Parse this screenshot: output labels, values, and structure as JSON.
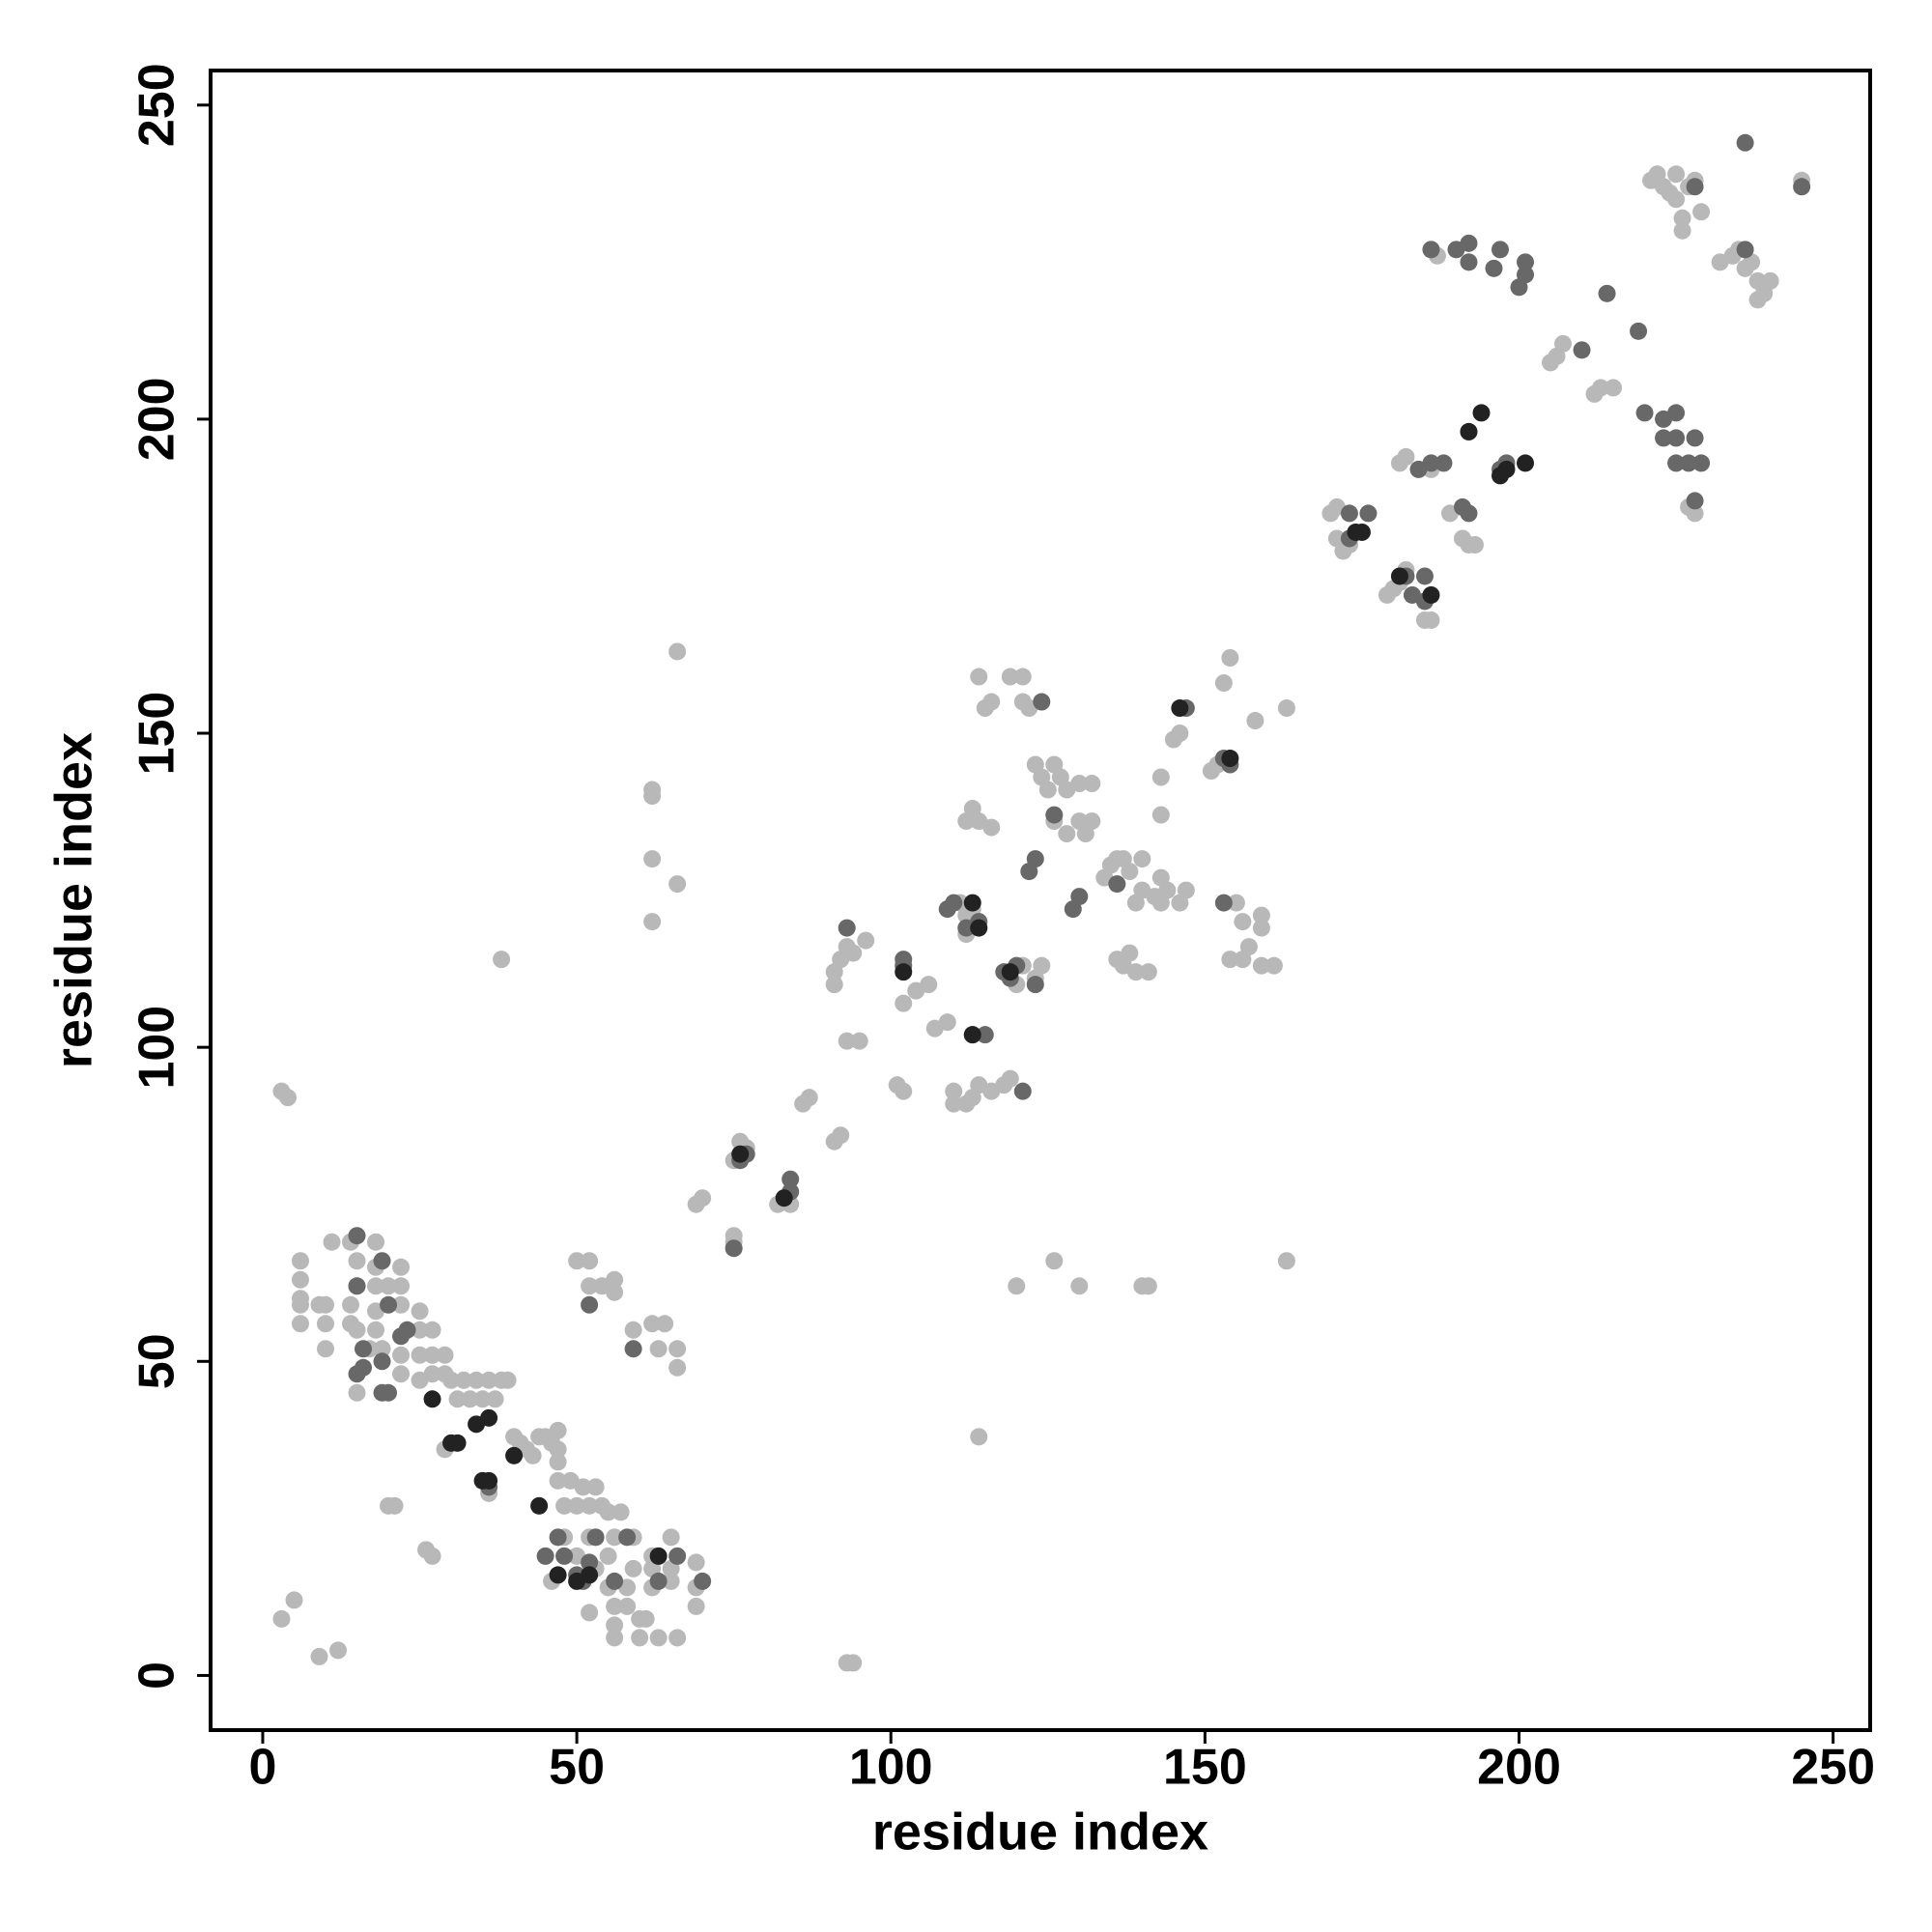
{
  "chart_data": {
    "type": "scatter",
    "x_label": "residue index",
    "y_label": "residue index",
    "xlim": [
      -8.3,
      255.9
    ],
    "ylim": [
      -8.7,
      255.5
    ],
    "xticks": [
      0,
      50,
      100,
      150,
      200,
      250
    ],
    "yticks": [
      0,
      50,
      100,
      150,
      200,
      250
    ],
    "grid": false,
    "series": [
      {
        "color": "#b8b8b8",
        "x": [
          3,
          4,
          3,
          5,
          9,
          12,
          6,
          6,
          6,
          6,
          6,
          9,
          10,
          10,
          11,
          10,
          14,
          14,
          14,
          15,
          15,
          15,
          15,
          17,
          18,
          18,
          18,
          18,
          18,
          19,
          20,
          22,
          22,
          22,
          22,
          22,
          25,
          25,
          25,
          25,
          27,
          27,
          27,
          29,
          29,
          30,
          31,
          32,
          33,
          34,
          35,
          36,
          37,
          38,
          39,
          40,
          41,
          42,
          43,
          44,
          45,
          46,
          47,
          47,
          47,
          47,
          48,
          49,
          50,
          51,
          52,
          53,
          54,
          55,
          56,
          57,
          59,
          48,
          50,
          52,
          53,
          55,
          55,
          56,
          56,
          56,
          58,
          58,
          59,
          60,
          60,
          61,
          62,
          62,
          62,
          63,
          65,
          65,
          65,
          66,
          69,
          69,
          69,
          46,
          52,
          20,
          21,
          26,
          27,
          50,
          52,
          52,
          54,
          56,
          56,
          59,
          62,
          63,
          66,
          66,
          64,
          29,
          36,
          38,
          66,
          62,
          62,
          62,
          62,
          66,
          93,
          94,
          114,
          120,
          126,
          130,
          140,
          141,
          163,
          69,
          70,
          75,
          75,
          75,
          76,
          77,
          77,
          82,
          83,
          84,
          84,
          86,
          87,
          91,
          92,
          91,
          91,
          92,
          93,
          94,
          93,
          95,
          96,
          101,
          102,
          102,
          104,
          106,
          107,
          109,
          110,
          110,
          112,
          113,
          114,
          116,
          118,
          119,
          112,
          112,
          113,
          111,
          112,
          113,
          114,
          116,
          114,
          115,
          116,
          119,
          121,
          121,
          122,
          123,
          124,
          125,
          126,
          127,
          128,
          126,
          128,
          130,
          131,
          132,
          130,
          132,
          120,
          121,
          123,
          124,
          134,
          135,
          136,
          137,
          138,
          139,
          140,
          142,
          143,
          144,
          146,
          147,
          136,
          137,
          138,
          139,
          141,
          143,
          140,
          143,
          143,
          145,
          146,
          151,
          152,
          153,
          154,
          155,
          156,
          157,
          154,
          156,
          158,
          163,
          159,
          159,
          159,
          161,
          170,
          171,
          171,
          172,
          173,
          174,
          179,
          180,
          181,
          182,
          181,
          182,
          185,
          186,
          186,
          189,
          191,
          192,
          193,
          186,
          187,
          205,
          206,
          207,
          212,
          213,
          215,
          221,
          222,
          223,
          224,
          225,
          225,
          226,
          226,
          227,
          228,
          229,
          232,
          234,
          235,
          236,
          237,
          238,
          239,
          240,
          238,
          239,
          245,
          227,
          228
        ],
        "y": [
          93,
          92,
          9,
          12,
          3,
          4,
          66,
          63,
          60,
          59,
          56,
          59,
          59,
          56,
          69,
          52,
          69,
          59,
          56,
          66,
          62,
          55,
          45,
          52,
          69,
          65,
          62,
          58,
          55,
          52,
          62,
          65,
          62,
          59,
          51,
          48,
          58,
          55,
          51,
          47,
          55,
          51,
          48,
          51,
          48,
          47,
          44,
          47,
          44,
          47,
          44,
          47,
          44,
          47,
          47,
          38,
          37,
          36,
          35,
          38,
          38,
          37,
          39,
          36,
          34,
          31,
          27,
          31,
          27,
          30,
          27,
          30,
          27,
          26,
          22,
          26,
          22,
          22,
          19,
          22,
          17,
          19,
          14,
          11,
          8,
          6,
          14,
          11,
          17,
          9,
          6,
          9,
          14,
          19,
          17,
          6,
          22,
          17,
          15,
          6,
          18,
          14,
          11,
          15,
          10,
          27,
          27,
          20,
          19,
          66,
          66,
          62,
          62,
          63,
          61,
          55,
          56,
          52,
          52,
          49,
          56,
          36,
          29,
          114,
          163,
          141,
          140,
          130,
          120,
          126,
          2,
          2,
          38,
          62,
          66,
          62,
          62,
          62,
          66,
          75,
          76,
          69,
          70,
          82,
          85,
          83,
          84,
          75,
          76,
          75,
          77,
          91,
          92,
          85,
          86,
          110,
          112,
          114,
          116,
          115,
          101,
          101,
          117,
          94,
          93,
          107,
          109,
          110,
          103,
          104,
          93,
          91,
          91,
          92,
          94,
          93,
          94,
          95,
          118,
          121,
          122,
          123,
          136,
          138,
          136,
          135,
          159,
          154,
          155,
          159,
          159,
          155,
          154,
          145,
          143,
          141,
          145,
          143,
          141,
          136,
          134,
          136,
          134,
          136,
          142,
          142,
          110,
          113,
          111,
          113,
          127,
          129,
          130,
          130,
          128,
          123,
          125,
          124,
          123,
          125,
          123,
          125,
          114,
          113,
          115,
          112,
          112,
          127,
          130,
          137,
          143,
          149,
          150,
          144,
          145,
          158,
          162,
          123,
          120,
          116,
          114,
          114,
          152,
          154,
          113,
          119,
          121,
          113,
          185,
          186,
          181,
          179,
          180,
          182,
          172,
          173,
          174,
          176,
          193,
          194,
          168,
          168,
          192,
          185,
          181,
          180,
          180,
          227,
          226,
          209,
          210,
          212,
          204,
          205,
          205,
          238,
          239,
          237,
          236,
          239,
          235,
          232,
          230,
          237,
          238,
          233,
          225,
          226,
          227,
          224,
          225,
          222,
          221,
          222,
          219,
          220,
          238,
          186,
          185
        ]
      },
      {
        "color": "#686868",
        "x": [
          15,
          15,
          16,
          15,
          16,
          19,
          19,
          20,
          20,
          22,
          23,
          19,
          47,
          48,
          50,
          51,
          52,
          53,
          56,
          58,
          63,
          66,
          70,
          45,
          52,
          59,
          36,
          75,
          76,
          77,
          84,
          84,
          93,
          102,
          102,
          109,
          110,
          112,
          114,
          113,
          115,
          118,
          119,
          120,
          123,
          121,
          122,
          123,
          124,
          126,
          129,
          130,
          136,
          147,
          153,
          153,
          154,
          173,
          173,
          176,
          182,
          183,
          185,
          185,
          186,
          184,
          188,
          191,
          192,
          192,
          186,
          190,
          192,
          192,
          196,
          197,
          197,
          198,
          201,
          201,
          200,
          210,
          214,
          219,
          220,
          223,
          223,
          225,
          225,
          225,
          227,
          228,
          229,
          228,
          236,
          236,
          228,
          245
        ],
        "y": [
          70,
          62,
          52,
          48,
          49,
          66,
          45,
          45,
          59,
          54,
          55,
          50,
          22,
          19,
          16,
          15,
          18,
          22,
          15,
          22,
          15,
          19,
          15,
          19,
          59,
          52,
          30,
          68,
          82,
          83,
          79,
          77,
          119,
          113,
          114,
          122,
          123,
          119,
          120,
          102,
          102,
          112,
          111,
          113,
          110,
          93,
          128,
          130,
          155,
          137,
          122,
          124,
          126,
          154,
          123,
          146,
          145,
          185,
          181,
          185,
          175,
          172,
          175,
          171,
          193,
          192,
          193,
          186,
          185,
          198,
          227,
          227,
          228,
          225,
          224,
          227,
          192,
          193,
          223,
          225,
          221,
          211,
          220,
          214,
          201,
          200,
          197,
          197,
          201,
          193,
          193,
          197,
          193,
          187,
          227,
          244,
          237,
          237
        ]
      },
      {
        "color": "#222222",
        "x": [
          27,
          30,
          31,
          34,
          36,
          35,
          36,
          40,
          44,
          47,
          50,
          52,
          63,
          76,
          83,
          102,
          113,
          113,
          114,
          119,
          174,
          175,
          181,
          186,
          192,
          194,
          197,
          198,
          201,
          146,
          154
        ],
        "y": [
          44,
          37,
          37,
          40,
          41,
          31,
          31,
          35,
          27,
          16,
          15,
          16,
          19,
          83,
          76,
          112,
          102,
          123,
          119,
          112,
          182,
          182,
          175,
          172,
          198,
          201,
          191,
          192,
          193,
          154,
          146
        ]
      }
    ]
  }
}
